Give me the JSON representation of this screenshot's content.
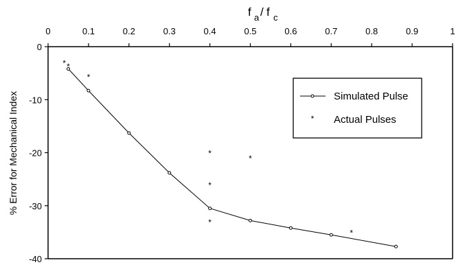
{
  "chart_data": {
    "type": "scatter",
    "xaxis_label_main": "f",
    "xaxis_label_sub1": "a",
    "xaxis_label_sep": "/",
    "xaxis_label_main2": "f",
    "xaxis_label_sub2": "c",
    "xaxis_position": "top",
    "ylabel": "% Error for Mechanical Index",
    "xlim": [
      0,
      1
    ],
    "ylim": [
      -40,
      0
    ],
    "x_ticks": [
      0,
      0.1,
      0.2,
      0.3,
      0.4,
      0.5,
      0.6,
      0.7,
      0.8,
      0.9,
      1
    ],
    "x_tick_labels": [
      "0",
      "0.1",
      "0.2",
      "0.3",
      "0.4",
      "0.5",
      "0.6",
      "0.7",
      "0.8",
      "0.9",
      "1"
    ],
    "y_ticks": [
      0,
      -10,
      -20,
      -30,
      -40
    ],
    "y_tick_labels": [
      "0",
      "-10",
      "-20",
      "-30",
      "-40"
    ],
    "grid": false,
    "legend_position": "top-right",
    "series": [
      {
        "name": "Simulated Pulse",
        "style": "line-with-open-circles",
        "color": "#000000",
        "x": [
          0.05,
          0.1,
          0.2,
          0.3,
          0.4,
          0.5,
          0.6,
          0.7,
          0.86
        ],
        "y": [
          -4.2,
          -8.3,
          -16.3,
          -23.8,
          -30.5,
          -32.8,
          -34.2,
          -35.5,
          -37.7
        ]
      },
      {
        "name": "Actual Pulses",
        "style": "asterisk-markers",
        "color": "#000000",
        "x": [
          0.04,
          0.05,
          0.1,
          0.4,
          0.4,
          0.4,
          0.5,
          0.75
        ],
        "y": [
          -3.0,
          -3.6,
          -5.6,
          -20.0,
          -26.0,
          -33.0,
          -21.0,
          -35.0
        ]
      }
    ]
  }
}
